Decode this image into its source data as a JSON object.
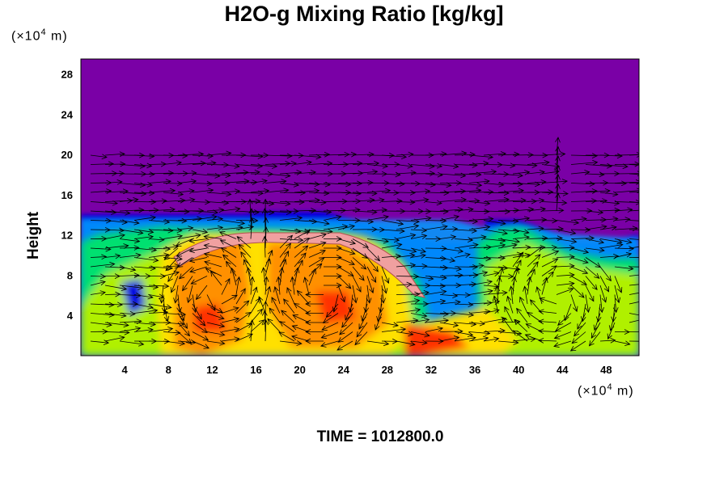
{
  "chart_data": {
    "type": "heatmap",
    "title": "H2O-g Mixing Ratio [kg/kg]",
    "ylabel": "Height",
    "y_unit_prefix": "(×10",
    "y_unit_exp": "4",
    "y_unit_suffix": " m)",
    "x_unit_prefix": "(×10",
    "x_unit_exp": "4",
    "x_unit_suffix": " m)",
    "xlim": [
      0,
      51
    ],
    "ylim": [
      0,
      29.5
    ],
    "xticks": [
      4,
      8,
      12,
      16,
      20,
      24,
      28,
      32,
      36,
      40,
      44,
      48
    ],
    "yticks": [
      4,
      8,
      12,
      16,
      20,
      24,
      28
    ],
    "time_label": "TIME = 1012800.0",
    "colormap": [
      "#7a00a6",
      "#0000e0",
      "#00a0ff",
      "#00e070",
      "#b0f000",
      "#ffe000",
      "#ff9000",
      "#ff3000",
      "#f0a0a0"
    ],
    "overlay": "wind vectors"
  }
}
